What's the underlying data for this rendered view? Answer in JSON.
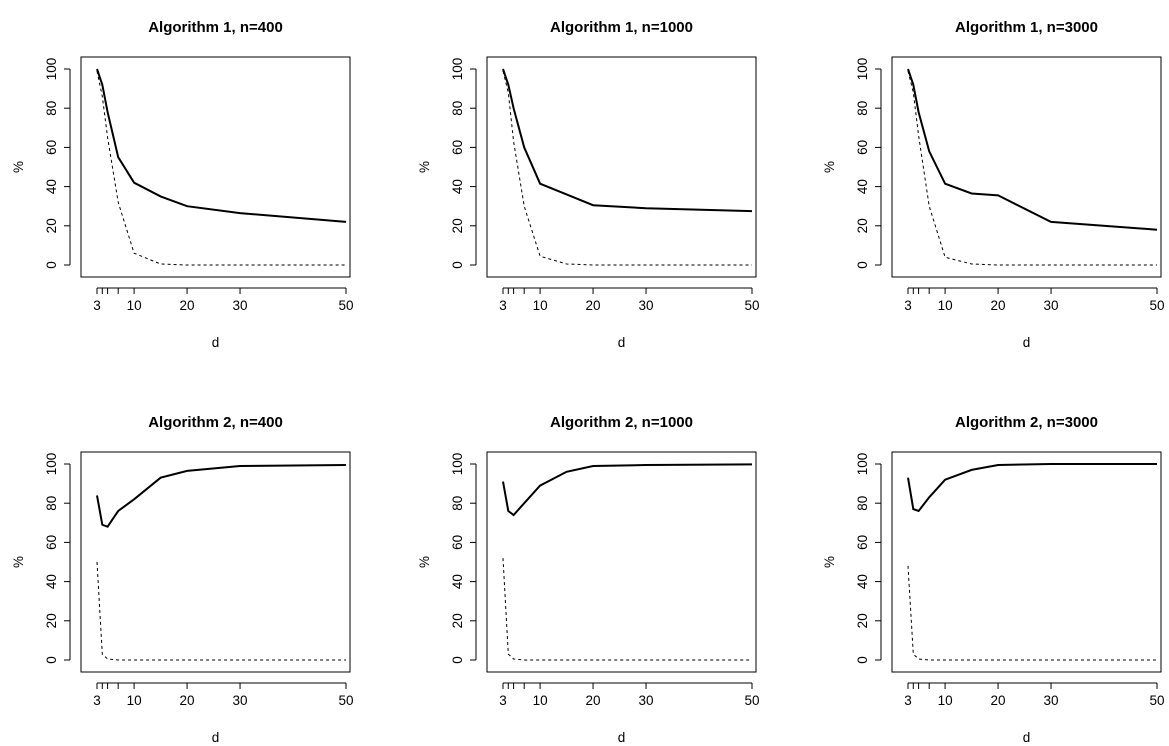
{
  "chart_data": [
    {
      "type": "line",
      "title": "Algorithm 1, n=400",
      "xlabel": "d",
      "ylabel": "%",
      "x": [
        3,
        4,
        5,
        7,
        10,
        15,
        20,
        30,
        50
      ],
      "xticks_labeled": [
        3,
        10,
        20,
        30,
        50
      ],
      "xticks_minor": [
        4,
        5,
        7
      ],
      "yticks": [
        0,
        20,
        40,
        60,
        80,
        100
      ],
      "ylim": [
        0,
        100
      ],
      "series": [
        {
          "style": "solid",
          "values": [
            100,
            92,
            78,
            55,
            42,
            35,
            30,
            26.5,
            22
          ]
        },
        {
          "style": "dashed",
          "values": [
            99,
            86,
            65,
            32,
            6,
            0.5,
            0,
            0,
            0
          ]
        }
      ]
    },
    {
      "type": "line",
      "title": "Algorithm 1, n=1000",
      "xlabel": "d",
      "ylabel": "%",
      "x": [
        3,
        4,
        5,
        7,
        10,
        15,
        20,
        30,
        50
      ],
      "xticks_labeled": [
        3,
        10,
        20,
        30,
        50
      ],
      "xticks_minor": [
        4,
        5,
        7
      ],
      "yticks": [
        0,
        20,
        40,
        60,
        80,
        100
      ],
      "ylim": [
        0,
        100
      ],
      "series": [
        {
          "style": "solid",
          "values": [
            100,
            92,
            80,
            60,
            41.5,
            36,
            30.5,
            29,
            27.5
          ]
        },
        {
          "style": "dashed",
          "values": [
            99,
            88,
            63,
            30,
            4.5,
            0.5,
            0,
            0,
            0
          ]
        }
      ]
    },
    {
      "type": "line",
      "title": "Algorithm 1, n=3000",
      "xlabel": "d",
      "ylabel": "%",
      "x": [
        3,
        4,
        5,
        7,
        10,
        15,
        20,
        30,
        50
      ],
      "xticks_labeled": [
        3,
        10,
        20,
        30,
        50
      ],
      "xticks_minor": [
        4,
        5,
        7
      ],
      "yticks": [
        0,
        20,
        40,
        60,
        80,
        100
      ],
      "ylim": [
        0,
        100
      ],
      "series": [
        {
          "style": "solid",
          "values": [
            100,
            92,
            78,
            58,
            41.5,
            36.5,
            35.5,
            22,
            18
          ]
        },
        {
          "style": "dashed",
          "values": [
            99,
            88,
            66,
            30,
            4,
            0.5,
            0,
            0,
            0
          ]
        }
      ]
    },
    {
      "type": "line",
      "title": "Algorithm 2, n=400",
      "xlabel": "d",
      "ylabel": "%",
      "x": [
        3,
        4,
        5,
        7,
        10,
        15,
        20,
        30,
        50
      ],
      "xticks_labeled": [
        3,
        10,
        20,
        30,
        50
      ],
      "xticks_minor": [
        4,
        5,
        7
      ],
      "yticks": [
        0,
        20,
        40,
        60,
        80,
        100
      ],
      "ylim": [
        0,
        100
      ],
      "series": [
        {
          "style": "solid",
          "values": [
            84,
            69,
            68,
            76,
            82,
            93,
            96.5,
            99,
            99.5
          ]
        },
        {
          "style": "dashed",
          "values": [
            50,
            3,
            0.5,
            0,
            0,
            0,
            0,
            0,
            0
          ]
        }
      ]
    },
    {
      "type": "line",
      "title": "Algorithm 2, n=1000",
      "xlabel": "d",
      "ylabel": "%",
      "x": [
        3,
        4,
        5,
        7,
        10,
        15,
        20,
        30,
        50
      ],
      "xticks_labeled": [
        3,
        10,
        20,
        30,
        50
      ],
      "xticks_minor": [
        4,
        5,
        7
      ],
      "yticks": [
        0,
        20,
        40,
        60,
        80,
        100
      ],
      "ylim": [
        0,
        100
      ],
      "series": [
        {
          "style": "solid",
          "values": [
            91,
            76,
            74,
            80,
            89,
            96,
            99,
            99.5,
            99.8
          ]
        },
        {
          "style": "dashed",
          "values": [
            52,
            3,
            0.5,
            0,
            0,
            0,
            0,
            0,
            0
          ]
        }
      ]
    },
    {
      "type": "line",
      "title": "Algorithm 2, n=3000",
      "xlabel": "d",
      "ylabel": "%",
      "x": [
        3,
        4,
        5,
        7,
        10,
        15,
        20,
        30,
        50
      ],
      "xticks_labeled": [
        3,
        10,
        20,
        30,
        50
      ],
      "xticks_minor": [
        4,
        5,
        7
      ],
      "yticks": [
        0,
        20,
        40,
        60,
        80,
        100
      ],
      "ylim": [
        0,
        100
      ],
      "series": [
        {
          "style": "solid",
          "values": [
            93,
            77,
            76,
            83,
            92,
            97,
            99.5,
            100,
            100
          ]
        },
        {
          "style": "dashed",
          "values": [
            48,
            3,
            0.5,
            0,
            0,
            0,
            0,
            0,
            0
          ]
        }
      ]
    }
  ]
}
